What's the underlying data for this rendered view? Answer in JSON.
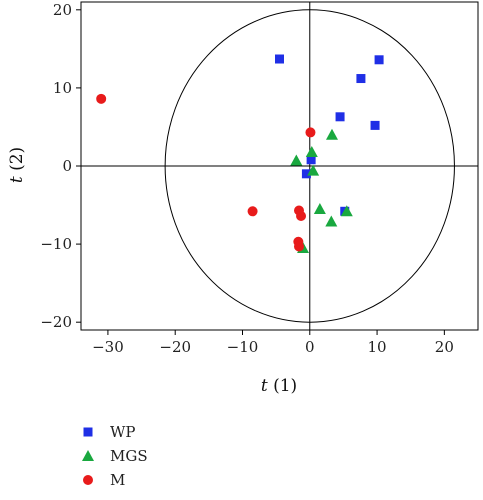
{
  "chart_data": {
    "type": "scatter",
    "xlabel": {
      "var": "t",
      "suffix": " (1)"
    },
    "ylabel": {
      "var": "t",
      "suffix": " (2)"
    },
    "xlim": [
      -34,
      25
    ],
    "ylim": [
      -21,
      21
    ],
    "xticks": [
      -30,
      -20,
      -10,
      0,
      10,
      20
    ],
    "yticks": [
      -20,
      -10,
      0,
      10,
      20
    ],
    "xtick_labels": [
      "−30",
      "−20",
      "−10",
      "0",
      "10",
      "20"
    ],
    "ytick_labels": [
      "−20",
      "−10",
      "0",
      "10",
      "20"
    ],
    "ellipse": {
      "cx": 0,
      "cy": 0,
      "rx": 21.5,
      "ry": 20
    },
    "legend_position": "bottom-left",
    "series": [
      {
        "name": "WP",
        "marker": "square",
        "color": "#1f2fe6",
        "points": [
          [
            -4.5,
            13.7
          ],
          [
            10.3,
            13.6
          ],
          [
            7.6,
            11.2
          ],
          [
            4.5,
            6.3
          ],
          [
            9.7,
            5.2
          ],
          [
            0.2,
            0.8
          ],
          [
            -0.5,
            -1.0
          ],
          [
            5.2,
            -5.8
          ]
        ]
      },
      {
        "name": "MGS",
        "marker": "triangle",
        "color": "#19a83f",
        "points": [
          [
            3.3,
            4.0
          ],
          [
            0.3,
            1.8
          ],
          [
            -2.0,
            0.7
          ],
          [
            0.5,
            -0.6
          ],
          [
            1.5,
            -5.5
          ],
          [
            5.5,
            -5.8
          ],
          [
            3.2,
            -7.1
          ],
          [
            -1.0,
            -10.5
          ]
        ]
      },
      {
        "name": "M",
        "marker": "circle",
        "color": "#e81b1b",
        "points": [
          [
            -31.0,
            8.6
          ],
          [
            0.1,
            4.3
          ],
          [
            -8.5,
            -5.8
          ],
          [
            -1.6,
            -5.7
          ],
          [
            -1.3,
            -6.4
          ],
          [
            -1.7,
            -9.7
          ],
          [
            -1.6,
            -10.3
          ]
        ]
      }
    ]
  }
}
